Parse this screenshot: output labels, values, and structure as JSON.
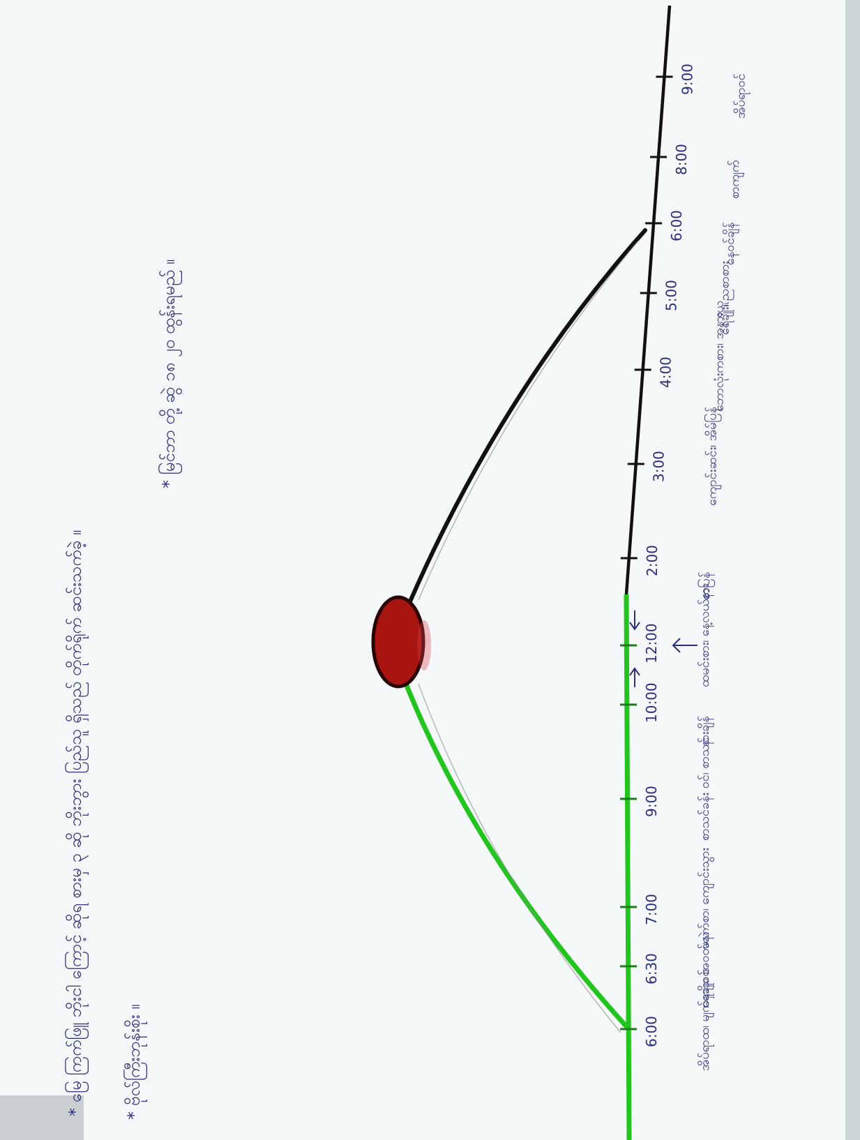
{
  "colors": {
    "paper": "#f4f8f8",
    "morning_line": "#22c51e",
    "afternoon_line": "#111111",
    "sun_fill": "#a8140f",
    "sun_outline": "#2a0505",
    "ink": "#2b2f7a"
  },
  "notes": {
    "note_1": "* ဗိုလ်ကြီးဘုန်းစိုး ။",
    "note_2": "* မြေ ကြက်ဖြူ ဘိုးငါ ကြောင့် ဆိုရ စားမှ ၃ ဆို ဘိုးဘွား ပြည်သူ ရှိသည် တိုက်ရိုက် ဆင်းသက်ခဲ့ ။",
    "note_3": "* မြင်ဘာ တို့ ဆွဲ ၁၈ ၂၀ ထွန်းရမည် ။"
  },
  "timeline": {
    "ticks": [
      {
        "time": "6:00",
        "activity": "အိပ်ရာထ၊ မျက်နှာသစ်"
      },
      {
        "time": "6:30",
        "activity": "ရေချိုး၊ အဝတ်လဲ"
      },
      {
        "time": "7:00",
        "activity": "မနက်စာ၊ ကျောင်းသွား"
      },
      {
        "time": "9:00",
        "activity": "စာသင်ခန်း ဝင်၊ စာသင်"
      },
      {
        "time": "10:00",
        "activity": "နားချိန်"
      },
      {
        "time": "12:00",
        "activity": "ထမင်းစား၊ နေ့လယ်နား"
      },
      {
        "time": "2:00",
        "activity": "စာပြန်"
      },
      {
        "time": "3:00",
        "activity": "ကျောင်းဆင်း၊ အိမ်ပြန်"
      },
      {
        "time": "4:00",
        "activity": "ဘောလုံးကစား၊ အနားယူ"
      },
      {
        "time": "5:00",
        "activity": "ရေချိုး၊ ညစာစား"
      },
      {
        "time": "6:00",
        "activity": "နေဝင်ချိန်"
      },
      {
        "time": "8:00",
        "activity": "စာကျက်"
      },
      {
        "time": "9:00",
        "activity": "အိပ်ရာဝင်"
      }
    ]
  }
}
